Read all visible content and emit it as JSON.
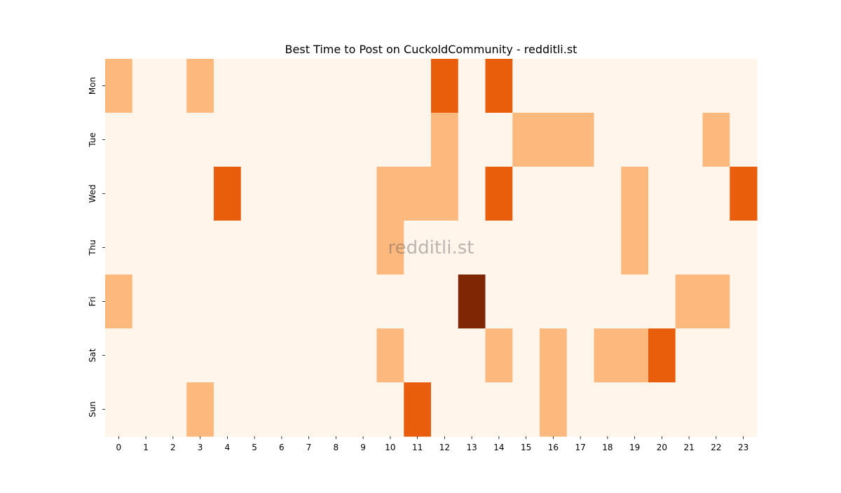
{
  "chart_data": {
    "type": "heatmap",
    "title": "Best Time to Post on CuckoldCommunity - redditli.st",
    "watermark": "redditli.st",
    "xlabel": "",
    "ylabel": "",
    "x_categories": [
      "0",
      "1",
      "2",
      "3",
      "4",
      "5",
      "6",
      "7",
      "8",
      "9",
      "10",
      "11",
      "12",
      "13",
      "14",
      "15",
      "16",
      "17",
      "18",
      "19",
      "20",
      "21",
      "22",
      "23"
    ],
    "y_categories": [
      "Mon",
      "Tue",
      "Wed",
      "Thu",
      "Fri",
      "Sat",
      "Sun"
    ],
    "values": [
      [
        1,
        0,
        0,
        1,
        0,
        0,
        0,
        0,
        0,
        0,
        0,
        0,
        2,
        0,
        2,
        0,
        0,
        0,
        0,
        0,
        0,
        0,
        0,
        0
      ],
      [
        0,
        0,
        0,
        0,
        0,
        0,
        0,
        0,
        0,
        0,
        0,
        0,
        1,
        0,
        0,
        1,
        1,
        1,
        0,
        0,
        0,
        0,
        1,
        0
      ],
      [
        0,
        0,
        0,
        0,
        2,
        0,
        0,
        0,
        0,
        0,
        1,
        1,
        1,
        0,
        2,
        0,
        0,
        0,
        0,
        1,
        0,
        0,
        0,
        2
      ],
      [
        0,
        0,
        0,
        0,
        0,
        0,
        0,
        0,
        0,
        0,
        1,
        0,
        0,
        0,
        0,
        0,
        0,
        0,
        0,
        1,
        0,
        0,
        0,
        0
      ],
      [
        1,
        0,
        0,
        0,
        0,
        0,
        0,
        0,
        0,
        0,
        0,
        0,
        0,
        3,
        0,
        0,
        0,
        0,
        0,
        0,
        0,
        1,
        1,
        0
      ],
      [
        0,
        0,
        0,
        0,
        0,
        0,
        0,
        0,
        0,
        0,
        1,
        0,
        0,
        0,
        1,
        0,
        1,
        0,
        1,
        1,
        2,
        0,
        0,
        0
      ],
      [
        0,
        0,
        0,
        1,
        0,
        0,
        0,
        0,
        0,
        0,
        0,
        2,
        0,
        0,
        0,
        0,
        1,
        0,
        0,
        0,
        0,
        0,
        0,
        0
      ]
    ],
    "colormap": "Oranges",
    "level_colors": [
      "#fff5eb",
      "#fdb97d",
      "#e95e0d",
      "#7f2704"
    ],
    "colorbar": false,
    "grid": false
  }
}
